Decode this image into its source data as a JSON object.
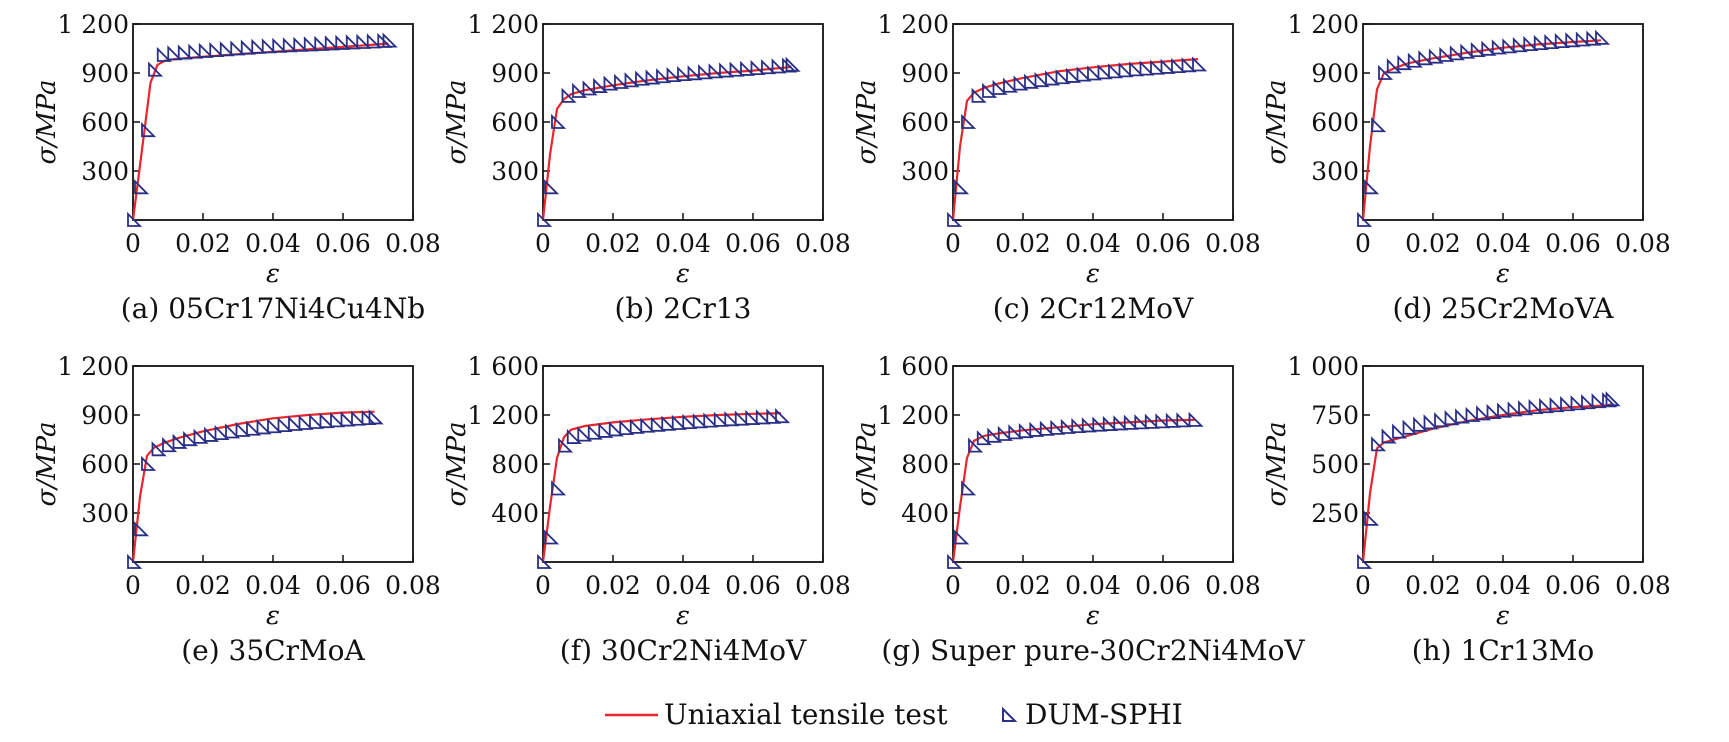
{
  "legend": {
    "test_label": "Uniaxial tensile test",
    "sim_label": "DUM-SPHI"
  },
  "colors": {
    "test_line": "#e8262d",
    "sim_marker": "#2a2f86",
    "axis": "#111111"
  },
  "chart_data": [
    {
      "type": "line",
      "caption": "(a) 05Cr17Ni4Cu4Nb",
      "xlabel": "ε",
      "ylabel": "σ/MPa",
      "xlim": [
        0,
        0.08
      ],
      "ylim": [
        0,
        1200
      ],
      "xticks": [
        0,
        0.02,
        0.04,
        0.06,
        0.08
      ],
      "xtick_labels": [
        "0",
        "0.02",
        "0.04",
        "0.06",
        "0.08"
      ],
      "yticks": [
        300,
        600,
        900,
        1200
      ],
      "ytick_labels": [
        "300",
        "600",
        "900",
        "1 200"
      ],
      "series": [
        {
          "name": "Uniaxial tensile test",
          "x": [
            0,
            0.0025,
            0.005,
            0.007,
            0.009,
            0.012,
            0.02,
            0.03,
            0.04,
            0.05,
            0.06,
            0.07,
            0.073
          ],
          "y": [
            0,
            420,
            840,
            950,
            975,
            985,
            1000,
            1015,
            1030,
            1045,
            1060,
            1075,
            1080
          ]
        },
        {
          "name": "DUM-SPHI",
          "x": [
            0,
            0.002,
            0.004,
            0.006,
            0.0085,
            0.0115,
            0.0145,
            0.0175,
            0.0205,
            0.0235,
            0.0265,
            0.0295,
            0.0325,
            0.0355,
            0.0385,
            0.0415,
            0.0445,
            0.0475,
            0.0505,
            0.0535,
            0.0565,
            0.0595,
            0.0625,
            0.0655,
            0.0685,
            0.0715,
            0.073
          ],
          "y": [
            0,
            200,
            550,
            920,
            1010,
            1020,
            1025,
            1030,
            1035,
            1040,
            1045,
            1050,
            1055,
            1060,
            1063,
            1066,
            1069,
            1072,
            1075,
            1078,
            1081,
            1084,
            1087,
            1090,
            1093,
            1096,
            1098
          ]
        }
      ]
    },
    {
      "type": "line",
      "caption": "(b) 2Cr13",
      "xlabel": "ε",
      "ylabel": "σ/MPa",
      "xlim": [
        0,
        0.08
      ],
      "ylim": [
        0,
        1200
      ],
      "xticks": [
        0,
        0.02,
        0.04,
        0.06,
        0.08
      ],
      "xtick_labels": [
        "0",
        "0.02",
        "0.04",
        "0.06",
        "0.08"
      ],
      "yticks": [
        300,
        600,
        900,
        1200
      ],
      "ytick_labels": [
        "300",
        "600",
        "900",
        "1 200"
      ],
      "series": [
        {
          "name": "Uniaxial tensile test",
          "x": [
            0,
            0.002,
            0.004,
            0.006,
            0.008,
            0.012,
            0.02,
            0.03,
            0.04,
            0.05,
            0.06,
            0.07,
            0.071
          ],
          "y": [
            0,
            400,
            680,
            740,
            770,
            795,
            825,
            855,
            880,
            900,
            915,
            935,
            940
          ]
        },
        {
          "name": "DUM-SPHI",
          "x": [
            0,
            0.002,
            0.004,
            0.007,
            0.01,
            0.013,
            0.016,
            0.019,
            0.022,
            0.025,
            0.028,
            0.031,
            0.034,
            0.037,
            0.04,
            0.043,
            0.046,
            0.049,
            0.052,
            0.055,
            0.058,
            0.061,
            0.064,
            0.067,
            0.07,
            0.071
          ],
          "y": [
            0,
            200,
            600,
            760,
            790,
            805,
            820,
            835,
            845,
            855,
            865,
            872,
            880,
            887,
            893,
            898,
            904,
            910,
            915,
            920,
            925,
            930,
            935,
            940,
            945,
            950
          ]
        }
      ]
    },
    {
      "type": "line",
      "caption": "(c) 2Cr12MoV",
      "xlabel": "ε",
      "ylabel": "σ/MPa",
      "xlim": [
        0,
        0.08
      ],
      "ylim": [
        0,
        1200
      ],
      "xticks": [
        0,
        0.02,
        0.04,
        0.06,
        0.08
      ],
      "xtick_labels": [
        "0",
        "0.02",
        "0.04",
        "0.06",
        "0.08"
      ],
      "yticks": [
        300,
        600,
        900,
        1200
      ],
      "ytick_labels": [
        "300",
        "600",
        "900",
        "1 200"
      ],
      "series": [
        {
          "name": "Uniaxial tensile test",
          "x": [
            0,
            0.002,
            0.004,
            0.006,
            0.009,
            0.013,
            0.02,
            0.03,
            0.04,
            0.05,
            0.06,
            0.07
          ],
          "y": [
            0,
            450,
            730,
            780,
            810,
            835,
            870,
            910,
            935,
            955,
            970,
            985
          ]
        },
        {
          "name": "DUM-SPHI",
          "x": [
            0,
            0.002,
            0.004,
            0.007,
            0.01,
            0.013,
            0.016,
            0.019,
            0.022,
            0.025,
            0.028,
            0.031,
            0.034,
            0.037,
            0.04,
            0.043,
            0.046,
            0.049,
            0.052,
            0.055,
            0.058,
            0.061,
            0.064,
            0.067,
            0.07
          ],
          "y": [
            0,
            200,
            600,
            760,
            790,
            808,
            822,
            835,
            846,
            856,
            866,
            874,
            882,
            890,
            897,
            904,
            910,
            916,
            922,
            927,
            932,
            937,
            942,
            947,
            952
          ]
        }
      ]
    },
    {
      "type": "line",
      "caption": "(d) 25Cr2MoVA",
      "xlabel": "ε",
      "ylabel": "σ/MPa",
      "xlim": [
        0,
        0.08
      ],
      "ylim": [
        0,
        1200
      ],
      "xticks": [
        0,
        0.02,
        0.04,
        0.06,
        0.08
      ],
      "xtick_labels": [
        "0",
        "0.02",
        "0.04",
        "0.06",
        "0.08"
      ],
      "yticks": [
        300,
        600,
        900,
        1200
      ],
      "ytick_labels": [
        "300",
        "600",
        "900",
        "1 200"
      ],
      "series": [
        {
          "name": "Uniaxial tensile test",
          "x": [
            0,
            0.002,
            0.004,
            0.006,
            0.009,
            0.013,
            0.02,
            0.03,
            0.04,
            0.05,
            0.06,
            0.068
          ],
          "y": [
            0,
            450,
            800,
            900,
            930,
            960,
            990,
            1025,
            1055,
            1075,
            1090,
            1100
          ]
        },
        {
          "name": "DUM-SPHI",
          "x": [
            0,
            0.002,
            0.004,
            0.006,
            0.0085,
            0.0115,
            0.0145,
            0.0175,
            0.0205,
            0.0235,
            0.0265,
            0.0295,
            0.0325,
            0.0355,
            0.0385,
            0.0415,
            0.0445,
            0.0475,
            0.0505,
            0.0535,
            0.0565,
            0.0595,
            0.0625,
            0.0655,
            0.068
          ],
          "y": [
            0,
            200,
            580,
            900,
            940,
            960,
            975,
            990,
            1000,
            1010,
            1020,
            1030,
            1040,
            1048,
            1056,
            1063,
            1070,
            1077,
            1083,
            1089,
            1095,
            1100,
            1105,
            1110,
            1115
          ]
        }
      ]
    },
    {
      "type": "line",
      "caption": "(e) 35CrMoA",
      "xlabel": "ε",
      "ylabel": "σ/MPa",
      "xlim": [
        0,
        0.08
      ],
      "ylim": [
        0,
        1200
      ],
      "xticks": [
        0,
        0.02,
        0.04,
        0.06,
        0.08
      ],
      "xtick_labels": [
        "0",
        "0.02",
        "0.04",
        "0.06",
        "0.08"
      ],
      "yticks": [
        300,
        600,
        900,
        1200
      ],
      "ytick_labels": [
        "300",
        "600",
        "900",
        "1 200"
      ],
      "series": [
        {
          "name": "Uniaxial tensile test",
          "x": [
            0,
            0.002,
            0.004,
            0.006,
            0.009,
            0.013,
            0.02,
            0.03,
            0.04,
            0.05,
            0.06,
            0.069
          ],
          "y": [
            0,
            400,
            650,
            700,
            730,
            760,
            800,
            845,
            880,
            900,
            915,
            920
          ]
        },
        {
          "name": "DUM-SPHI",
          "x": [
            0,
            0.002,
            0.004,
            0.007,
            0.01,
            0.013,
            0.016,
            0.019,
            0.022,
            0.025,
            0.028,
            0.031,
            0.034,
            0.037,
            0.04,
            0.043,
            0.046,
            0.049,
            0.052,
            0.055,
            0.058,
            0.061,
            0.064,
            0.067,
            0.069
          ],
          "y": [
            0,
            200,
            600,
            690,
            715,
            735,
            752,
            766,
            778,
            789,
            799,
            808,
            816,
            824,
            831,
            838,
            845,
            851,
            857,
            862,
            867,
            872,
            877,
            881,
            885
          ]
        }
      ]
    },
    {
      "type": "line",
      "caption": "(f) 30Cr2Ni4MoV",
      "xlabel": "ε",
      "ylabel": "σ/MPa",
      "xlim": [
        0,
        0.08
      ],
      "ylim": [
        0,
        1600
      ],
      "xticks": [
        0,
        0.02,
        0.04,
        0.06,
        0.08
      ],
      "xtick_labels": [
        "0",
        "0.02",
        "0.04",
        "0.06",
        "0.08"
      ],
      "yticks": [
        400,
        800,
        1200,
        1600
      ],
      "ytick_labels": [
        "400",
        "800",
        "1 200",
        "1 600"
      ],
      "series": [
        {
          "name": "Uniaxial tensile test",
          "x": [
            0,
            0.002,
            0.004,
            0.006,
            0.008,
            0.012,
            0.02,
            0.03,
            0.04,
            0.05,
            0.06,
            0.068
          ],
          "y": [
            0,
            450,
            850,
            1020,
            1080,
            1110,
            1140,
            1165,
            1185,
            1200,
            1210,
            1215
          ]
        },
        {
          "name": "DUM-SPHI",
          "x": [
            0,
            0.002,
            0.004,
            0.006,
            0.0085,
            0.0115,
            0.0145,
            0.0175,
            0.0205,
            0.0235,
            0.0265,
            0.0295,
            0.0325,
            0.0355,
            0.0385,
            0.0415,
            0.0445,
            0.0475,
            0.0505,
            0.0535,
            0.0565,
            0.0595,
            0.0625,
            0.0655,
            0.068
          ],
          "y": [
            0,
            200,
            600,
            950,
            1020,
            1040,
            1055,
            1070,
            1082,
            1093,
            1103,
            1112,
            1120,
            1128,
            1135,
            1142,
            1148,
            1154,
            1160,
            1165,
            1170,
            1175,
            1180,
            1185,
            1190
          ]
        }
      ]
    },
    {
      "type": "line",
      "caption": "(g) Super pure-30Cr2Ni4MoV",
      "xlabel": "ε",
      "ylabel": "σ/MPa",
      "xlim": [
        0,
        0.08
      ],
      "ylim": [
        0,
        1600
      ],
      "xticks": [
        0,
        0.02,
        0.04,
        0.06,
        0.08
      ],
      "xtick_labels": [
        "0",
        "0.02",
        "0.04",
        "0.06",
        "0.08"
      ],
      "yticks": [
        400,
        800,
        1200,
        1600
      ],
      "ytick_labels": [
        "400",
        "800",
        "1 200",
        "1 600"
      ],
      "series": [
        {
          "name": "Uniaxial tensile test",
          "x": [
            0,
            0.002,
            0.004,
            0.006,
            0.009,
            0.013,
            0.02,
            0.03,
            0.04,
            0.05,
            0.06,
            0.069
          ],
          "y": [
            0,
            450,
            850,
            990,
            1030,
            1050,
            1075,
            1100,
            1125,
            1140,
            1155,
            1160
          ]
        },
        {
          "name": "DUM-SPHI",
          "x": [
            0,
            0.002,
            0.004,
            0.006,
            0.0085,
            0.0115,
            0.0145,
            0.0175,
            0.0205,
            0.0235,
            0.0265,
            0.0295,
            0.0325,
            0.0355,
            0.0385,
            0.0415,
            0.0445,
            0.0475,
            0.0505,
            0.0535,
            0.0565,
            0.0595,
            0.0625,
            0.0655,
            0.069
          ],
          "y": [
            0,
            200,
            600,
            950,
            1010,
            1030,
            1045,
            1058,
            1068,
            1078,
            1087,
            1095,
            1102,
            1109,
            1115,
            1121,
            1126,
            1131,
            1136,
            1140,
            1144,
            1148,
            1152,
            1156,
            1160
          ]
        }
      ]
    },
    {
      "type": "line",
      "caption": "(h) 1Cr13Mo",
      "xlabel": "ε",
      "ylabel": "σ/MPa",
      "xlim": [
        0,
        0.08
      ],
      "ylim": [
        0,
        1000
      ],
      "xticks": [
        0,
        0.02,
        0.04,
        0.06,
        0.08
      ],
      "xtick_labels": [
        "0",
        "0.02",
        "0.04",
        "0.06",
        "0.08"
      ],
      "yticks": [
        250,
        500,
        750,
        1000
      ],
      "ytick_labels": [
        "250",
        "500",
        "750",
        "1 000"
      ],
      "series": [
        {
          "name": "Uniaxial tensile test",
          "x": [
            0,
            0.002,
            0.004,
            0.006,
            0.01,
            0.02,
            0.03,
            0.04,
            0.05,
            0.06,
            0.07,
            0.071
          ],
          "y": [
            0,
            350,
            580,
            610,
            630,
            680,
            720,
            750,
            775,
            790,
            800,
            805
          ]
        },
        {
          "name": "DUM-SPHI",
          "x": [
            0,
            0.002,
            0.004,
            0.007,
            0.01,
            0.013,
            0.016,
            0.019,
            0.022,
            0.025,
            0.028,
            0.031,
            0.034,
            0.037,
            0.04,
            0.043,
            0.046,
            0.049,
            0.052,
            0.055,
            0.058,
            0.061,
            0.064,
            0.067,
            0.07,
            0.071
          ],
          "y": [
            0,
            220,
            600,
            640,
            665,
            685,
            700,
            712,
            723,
            733,
            742,
            750,
            758,
            765,
            772,
            778,
            784,
            790,
            795,
            800,
            805,
            810,
            815,
            820,
            825,
            830
          ]
        }
      ]
    }
  ]
}
